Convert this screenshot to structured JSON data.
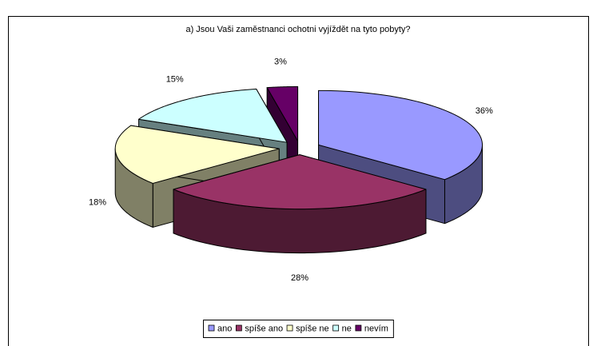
{
  "chart_data": {
    "type": "pie",
    "title": "a) Jsou Vaši zaměstnanci ochotni vyjíždět na tyto pobyty?",
    "categories": [
      "ano",
      "spíše ano",
      "spíše ne",
      "ne",
      "nevím"
    ],
    "values": [
      36,
      28,
      18,
      15,
      3
    ],
    "value_labels": [
      "36%",
      "28%",
      "18%",
      "15%",
      "3%"
    ],
    "colors": [
      "#9999FF",
      "#993366",
      "#FFFFCC",
      "#CCFFFF",
      "#660066"
    ],
    "legend": "bottom"
  }
}
